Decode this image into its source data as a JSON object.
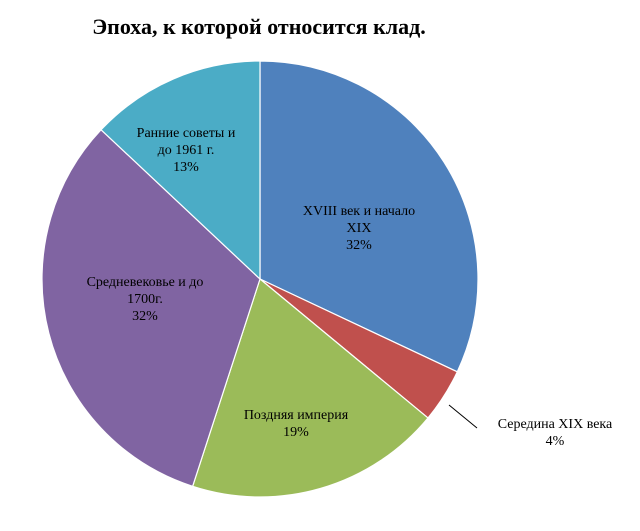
{
  "chart_data": {
    "type": "pie",
    "title": "Эпоха, к которой относится клад.",
    "start_angle_deg": 0,
    "direction": "clockwise",
    "slices": [
      {
        "lines": [
          "XVIII век и начало",
          "XIX"
        ],
        "percent_label": "32%",
        "value": 32,
        "color": "#4F81BD"
      },
      {
        "lines": [
          "Середина XIX века"
        ],
        "percent_label": "4%",
        "value": 4,
        "color": "#C0504D"
      },
      {
        "lines": [
          "Поздняя империя"
        ],
        "percent_label": "19%",
        "value": 19,
        "color": "#9BBB59"
      },
      {
        "lines": [
          "Средневековье и до",
          "1700г."
        ],
        "percent_label": "32%",
        "value": 32,
        "color": "#8064A2"
      },
      {
        "lines": [
          "Ранние советы и",
          "до 1961 г."
        ],
        "percent_label": "13%",
        "value": 13,
        "color": "#4BACC6"
      }
    ]
  }
}
